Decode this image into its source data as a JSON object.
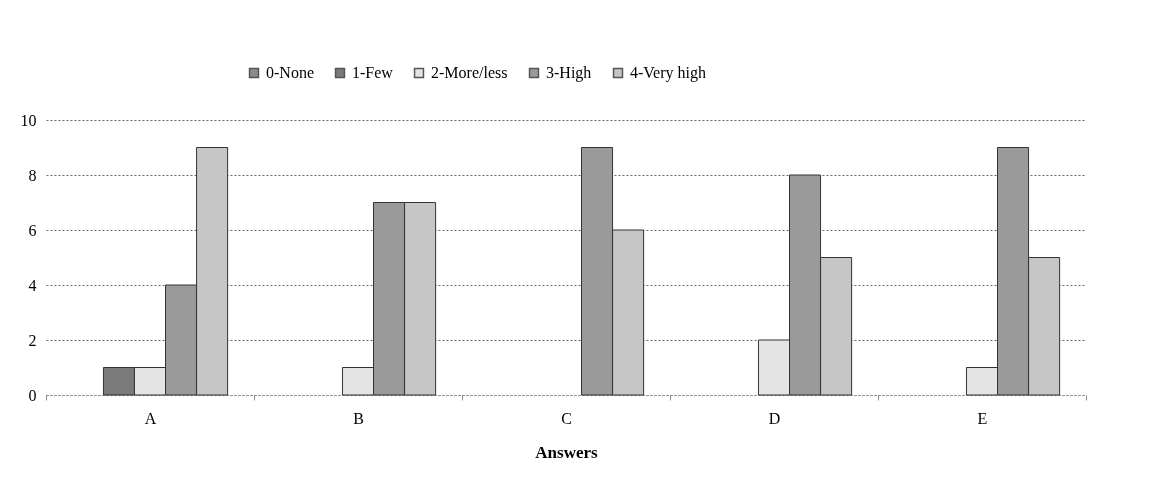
{
  "chart_data": {
    "type": "bar",
    "xlabel": "Answers",
    "categories": [
      "A",
      "B",
      "C",
      "D",
      "E"
    ],
    "series": [
      {
        "name": "0-None",
        "color": "#8c8c8c",
        "values": [
          0,
          0,
          0,
          0,
          0
        ]
      },
      {
        "name": "1-Few",
        "color": "#7a7a7a",
        "values": [
          1,
          0,
          0,
          0,
          0
        ]
      },
      {
        "name": "2-More/less",
        "color": "#e4e4e4",
        "values": [
          1,
          1,
          0,
          2,
          1
        ]
      },
      {
        "name": "3-High",
        "color": "#9a9a9a",
        "values": [
          4,
          7,
          9,
          8,
          9
        ]
      },
      {
        "name": "4-Very high",
        "color": "#c6c6c6",
        "values": [
          9,
          7,
          6,
          5,
          5
        ]
      }
    ],
    "ylim": [
      0,
      10
    ],
    "yticks": [
      0,
      2,
      4,
      6,
      8,
      10
    ],
    "grid": "y",
    "legend": "top"
  }
}
